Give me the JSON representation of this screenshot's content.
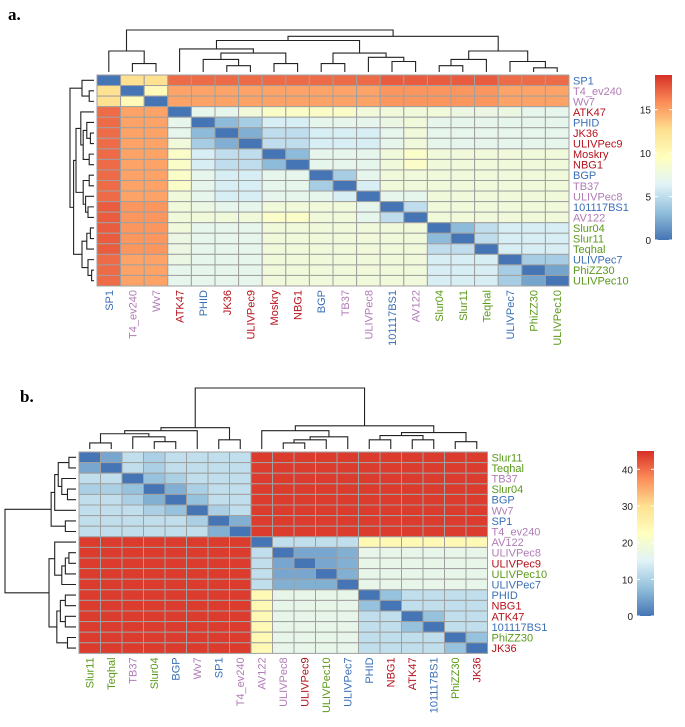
{
  "colors": {
    "palette": [
      "#4575b4",
      "#91bfdb",
      "#e0f3f8",
      "#ffffbf",
      "#fee090",
      "#fc8d59",
      "#d73027"
    ],
    "cell_border": "#a0a0a0",
    "label_colors": {
      "blue": "#3a6fb5",
      "purple": "#b07cb6",
      "red": "#b5121b",
      "green": "#5a9a1a"
    }
  },
  "chart_data": [
    {
      "panel_label": "a.",
      "type": "heatmap",
      "rows": [
        "SP1",
        "T4_ev240",
        "Wv7",
        "ATK47",
        "PHID",
        "JK36",
        "ULIVPec9",
        "Moskry",
        "NBG1",
        "BGP",
        "TB37",
        "ULIVPec8",
        "101117BS1",
        "AV122",
        "Slur04",
        "Slur11",
        "Teqhal",
        "ULIVPec7",
        "PhiZZ30",
        "ULIVPec10"
      ],
      "columns": [
        "SP1",
        "T4_ev240",
        "Wv7",
        "ATK47",
        "PHID",
        "JK36",
        "ULIVPec9",
        "Moskry",
        "NBG1",
        "BGP",
        "TB37",
        "ULIVPec8",
        "101117BS1",
        "AV122",
        "Slur04",
        "Slur11",
        "Teqhal",
        "ULIVPec7",
        "PhiZZ30",
        "ULIVPec10"
      ],
      "label_colors": [
        "blue",
        "purple",
        "purple",
        "red",
        "blue",
        "red",
        "red",
        "red",
        "red",
        "blue",
        "purple",
        "purple",
        "blue",
        "purple",
        "green",
        "green",
        "green",
        "blue",
        "green",
        "green"
      ],
      "values": [
        [
          0,
          12.5,
          12.5,
          17,
          17,
          17,
          17,
          17,
          17,
          17,
          17,
          17,
          17.5,
          17.5,
          17.5,
          17.5,
          17.5,
          17,
          17,
          17
        ],
        [
          12.5,
          0,
          10,
          15,
          15,
          15,
          15,
          15,
          15,
          15,
          15,
          15,
          15.5,
          15.5,
          15.5,
          15.5,
          15.5,
          15,
          15,
          15
        ],
        [
          12.5,
          10,
          0,
          15,
          15,
          15,
          15,
          15,
          15,
          15,
          15,
          15,
          15.5,
          15.5,
          15.5,
          15.5,
          15.5,
          15,
          15,
          15
        ],
        [
          17,
          15,
          15,
          0,
          7,
          7,
          8,
          9,
          9,
          9,
          9,
          8,
          8,
          8,
          8,
          7.5,
          7.5,
          7.5,
          7,
          7
        ],
        [
          17,
          15,
          15,
          7,
          0,
          3,
          4,
          6,
          6,
          7,
          7,
          7,
          7.5,
          8,
          7,
          7,
          7,
          7,
          7,
          7
        ],
        [
          17,
          15,
          15,
          7,
          3,
          0,
          2.5,
          5,
          5,
          6,
          6,
          6,
          7,
          8,
          7,
          7,
          7,
          7,
          7,
          7
        ],
        [
          17,
          15,
          15,
          8,
          4,
          2.5,
          0,
          5,
          5,
          6,
          6,
          6,
          7,
          8,
          7,
          7,
          7,
          7,
          7,
          7
        ],
        [
          17,
          15,
          15,
          9,
          6,
          5,
          5,
          0,
          3,
          7,
          7,
          7,
          8,
          9,
          8,
          8,
          8,
          8,
          8,
          8
        ],
        [
          17,
          15,
          15,
          9,
          6,
          5,
          5,
          3,
          0,
          7,
          7,
          7,
          8,
          9,
          8,
          8,
          8,
          8,
          8,
          8
        ],
        [
          17,
          15,
          15,
          9,
          7,
          6,
          6,
          7,
          7,
          0,
          4,
          7,
          8,
          8,
          8,
          8,
          8,
          8,
          8,
          8
        ],
        [
          17,
          15,
          15,
          9,
          7,
          6,
          6,
          7,
          7,
          4,
          0,
          6,
          8,
          8,
          8,
          8,
          8,
          8,
          8,
          8
        ],
        [
          17,
          15,
          15,
          8,
          7,
          6,
          6,
          7,
          7,
          7,
          6,
          0,
          7,
          7,
          8,
          8,
          8,
          8,
          8,
          8
        ],
        [
          17.5,
          15.5,
          15.5,
          8,
          7.5,
          7,
          7,
          8,
          8,
          8,
          8,
          7,
          0,
          5,
          8,
          8,
          8,
          8,
          8,
          8
        ],
        [
          17.5,
          15.5,
          15.5,
          8,
          8,
          8,
          8,
          9,
          9,
          8,
          8,
          7,
          5,
          0,
          8,
          8,
          8,
          8,
          8,
          8
        ],
        [
          17.5,
          15.5,
          15.5,
          8,
          7,
          7,
          7,
          8,
          8,
          8,
          8,
          8,
          8,
          8,
          0,
          3,
          5,
          6,
          6,
          6
        ],
        [
          17.5,
          15.5,
          15.5,
          7.5,
          7,
          7,
          7,
          8,
          8,
          8,
          8,
          8,
          8,
          8,
          3,
          0,
          5,
          6,
          6,
          6
        ],
        [
          17.5,
          15.5,
          15.5,
          7.5,
          7,
          7,
          7,
          8,
          8,
          8,
          8,
          8,
          8,
          8,
          5,
          5,
          0,
          6,
          6,
          6
        ],
        [
          17,
          15,
          15,
          7.5,
          7,
          7,
          7,
          8,
          8,
          8,
          8,
          8,
          8,
          8,
          6,
          6,
          6,
          0,
          4,
          4
        ],
        [
          17,
          15,
          15,
          7,
          7,
          7,
          7,
          8,
          8,
          8,
          8,
          8,
          8,
          8,
          6,
          6,
          6,
          4,
          0,
          2
        ],
        [
          17,
          15,
          15,
          7,
          7,
          7,
          7,
          8,
          8,
          8,
          8,
          8,
          8,
          8,
          6,
          6,
          6,
          4,
          2,
          0
        ]
      ],
      "range": [
        0,
        19
      ],
      "legend_ticks": [
        0,
        5,
        10,
        15
      ],
      "legend_ticks_text": [
        "0",
        "5",
        "10",
        "15"
      ],
      "legend_position": "right"
    },
    {
      "panel_label": "b.",
      "type": "heatmap",
      "rows": [
        "Slur11",
        "Teqhal",
        "TB37",
        "Slur04",
        "BGP",
        "Wv7",
        "SP1",
        "T4_ev240",
        "AV122",
        "ULIVPec8",
        "ULIVPec9",
        "ULIVPec10",
        "ULIVPec7",
        "PHID",
        "NBG1",
        "ATK47",
        "101117BS1",
        "PhiZZ30",
        "JK36"
      ],
      "columns": [
        "Slur11",
        "Teqhal",
        "TB37",
        "Slur04",
        "BGP",
        "Wv7",
        "SP1",
        "T4_ev240",
        "AV122",
        "ULIVPec8",
        "ULIVPec9",
        "ULIVPec10",
        "ULIVPec7",
        "PHID",
        "NBG1",
        "ATK47",
        "101117BS1",
        "PhiZZ30",
        "JK36"
      ],
      "label_colors": [
        "green",
        "green",
        "purple",
        "green",
        "blue",
        "purple",
        "blue",
        "purple",
        "purple",
        "purple",
        "red",
        "green",
        "blue",
        "blue",
        "red",
        "red",
        "blue",
        "green",
        "red"
      ],
      "values": [
        [
          0,
          5,
          12,
          10,
          12,
          12,
          12,
          12,
          44,
          44,
          44,
          44,
          44,
          44,
          44,
          44,
          44,
          44,
          44
        ],
        [
          5,
          0,
          12,
          10,
          12,
          12,
          12,
          12,
          44,
          44,
          44,
          44,
          44,
          44,
          44,
          44,
          44,
          44,
          44
        ],
        [
          12,
          12,
          0,
          8,
          10,
          12,
          12,
          12,
          44,
          44,
          44,
          44,
          44,
          44,
          44,
          44,
          44,
          44,
          44
        ],
        [
          10,
          10,
          8,
          0,
          6,
          10,
          12,
          12,
          44,
          44,
          44,
          44,
          44,
          44,
          44,
          44,
          44,
          44,
          44
        ],
        [
          12,
          12,
          10,
          6,
          0,
          8,
          12,
          12,
          44,
          44,
          44,
          44,
          44,
          44,
          44,
          44,
          44,
          44,
          44
        ],
        [
          12,
          12,
          12,
          10,
          8,
          0,
          10,
          12,
          44,
          44,
          44,
          44,
          44,
          44,
          44,
          44,
          44,
          44,
          44
        ],
        [
          12,
          12,
          12,
          12,
          12,
          10,
          0,
          6,
          44,
          44,
          44,
          44,
          44,
          44,
          44,
          44,
          44,
          44,
          44
        ],
        [
          12,
          12,
          12,
          12,
          12,
          12,
          6,
          0,
          44,
          44,
          44,
          44,
          44,
          44,
          44,
          44,
          44,
          44,
          44
        ],
        [
          44,
          44,
          44,
          44,
          44,
          44,
          44,
          44,
          0,
          12,
          12,
          12,
          12,
          24,
          24,
          24,
          24,
          24,
          24
        ],
        [
          44,
          44,
          44,
          44,
          44,
          44,
          44,
          44,
          12,
          0,
          5,
          5,
          6,
          17,
          17,
          17,
          17,
          17,
          17
        ],
        [
          44,
          44,
          44,
          44,
          44,
          44,
          44,
          44,
          12,
          5,
          0,
          5,
          6,
          17,
          17,
          17,
          17,
          17,
          17
        ],
        [
          44,
          44,
          44,
          44,
          44,
          44,
          44,
          44,
          12,
          5,
          5,
          0,
          6,
          17,
          17,
          17,
          17,
          17,
          17
        ],
        [
          44,
          44,
          44,
          44,
          44,
          44,
          44,
          44,
          12,
          6,
          6,
          6,
          0,
          17,
          17,
          17,
          17,
          17,
          17
        ],
        [
          44,
          44,
          44,
          44,
          44,
          44,
          44,
          44,
          24,
          17,
          17,
          17,
          17,
          0,
          8,
          12,
          12,
          12,
          12
        ],
        [
          44,
          44,
          44,
          44,
          44,
          44,
          44,
          44,
          24,
          17,
          17,
          17,
          17,
          8,
          0,
          12,
          12,
          12,
          12
        ],
        [
          44,
          44,
          44,
          44,
          44,
          44,
          44,
          44,
          24,
          17,
          17,
          17,
          17,
          12,
          12,
          0,
          8,
          12,
          12
        ],
        [
          44,
          44,
          44,
          44,
          44,
          44,
          44,
          44,
          24,
          17,
          17,
          17,
          17,
          12,
          12,
          8,
          0,
          12,
          12
        ],
        [
          44,
          44,
          44,
          44,
          44,
          44,
          44,
          44,
          24,
          17,
          17,
          17,
          17,
          12,
          12,
          12,
          12,
          0,
          8
        ],
        [
          44,
          44,
          44,
          44,
          44,
          44,
          44,
          44,
          24,
          17,
          17,
          17,
          17,
          12,
          12,
          12,
          12,
          8,
          0
        ]
      ],
      "range": [
        0,
        45
      ],
      "legend_ticks": [
        0,
        10,
        20,
        30,
        40
      ],
      "legend_ticks_text": [
        "0",
        "10",
        "20",
        "30",
        "40"
      ],
      "legend_position": "right"
    }
  ]
}
